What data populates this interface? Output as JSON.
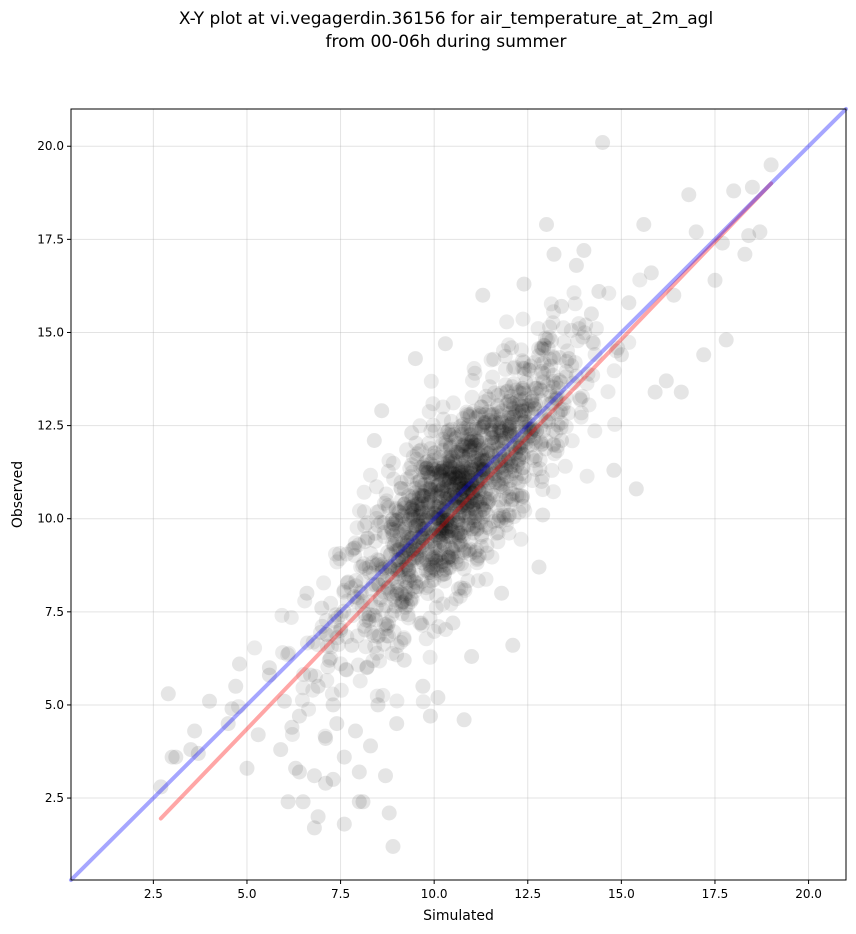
{
  "title_line1": "X-Y plot at vi.vegagerdin.36156 for air_temperature_at_2m_agl",
  "title_line2": "from 00-06h during summer",
  "chart_data": {
    "type": "scatter",
    "title": "X-Y plot at vi.vegagerdin.36156 for air_temperature_at_2m_agl from 00-06h during summer",
    "xlabel": "Simulated",
    "ylabel": "Observed",
    "xlim": [
      0.3,
      21.0
    ],
    "ylim": [
      0.3,
      21.0
    ],
    "xticks": [
      "2.5",
      "5.0",
      "7.5",
      "10.0",
      "12.5",
      "15.0",
      "17.5",
      "20.0"
    ],
    "yticks": [
      "2.5",
      "5.0",
      "7.5",
      "10.0",
      "12.5",
      "15.0",
      "17.5",
      "20.0"
    ],
    "grid": true,
    "point_color": "#000000",
    "point_alpha": 0.08,
    "points": [
      [
        2.7,
        2.8
      ],
      [
        2.9,
        5.3
      ],
      [
        3.0,
        3.6
      ],
      [
        3.1,
        3.6
      ],
      [
        3.6,
        4.3
      ],
      [
        3.7,
        3.7
      ],
      [
        3.5,
        3.8
      ],
      [
        4.0,
        5.1
      ],
      [
        4.5,
        4.5
      ],
      [
        4.6,
        4.9
      ],
      [
        4.7,
        5.5
      ],
      [
        4.8,
        6.1
      ],
      [
        5.0,
        3.3
      ],
      [
        5.3,
        4.2
      ],
      [
        5.6,
        5.8
      ],
      [
        5.6,
        6.0
      ],
      [
        5.9,
        3.8
      ],
      [
        6.0,
        5.1
      ],
      [
        6.1,
        2.4
      ],
      [
        6.2,
        4.4
      ],
      [
        6.3,
        3.3
      ],
      [
        6.4,
        3.2
      ],
      [
        6.5,
        2.4
      ],
      [
        6.4,
        4.7
      ],
      [
        6.6,
        8.0
      ],
      [
        6.7,
        5.8
      ],
      [
        6.8,
        3.1
      ],
      [
        6.8,
        1.7
      ],
      [
        6.9,
        2.0
      ],
      [
        6.9,
        5.5
      ],
      [
        7.0,
        7.6
      ],
      [
        7.1,
        4.1
      ],
      [
        7.1,
        2.9
      ],
      [
        7.2,
        6.2
      ],
      [
        7.3,
        5.0
      ],
      [
        7.3,
        3.0
      ],
      [
        7.4,
        4.5
      ],
      [
        7.5,
        7.0
      ],
      [
        7.6,
        1.8
      ],
      [
        7.6,
        3.6
      ],
      [
        7.7,
        8.3
      ],
      [
        7.8,
        6.6
      ],
      [
        7.9,
        4.3
      ],
      [
        8.0,
        2.4
      ],
      [
        8.0,
        3.2
      ],
      [
        8.1,
        2.4
      ],
      [
        8.2,
        6.0
      ],
      [
        8.3,
        3.9
      ],
      [
        8.4,
        12.1
      ],
      [
        8.5,
        5.0
      ],
      [
        8.6,
        12.9
      ],
      [
        8.7,
        3.1
      ],
      [
        8.8,
        2.1
      ],
      [
        8.9,
        1.2
      ],
      [
        9.0,
        4.5
      ],
      [
        9.2,
        6.2
      ],
      [
        9.4,
        12.3
      ],
      [
        9.5,
        14.3
      ],
      [
        9.7,
        5.5
      ],
      [
        9.9,
        4.7
      ],
      [
        10.1,
        5.2
      ],
      [
        10.3,
        14.7
      ],
      [
        10.5,
        7.2
      ],
      [
        10.8,
        4.6
      ],
      [
        11.0,
        6.3
      ],
      [
        11.2,
        9.0
      ],
      [
        11.3,
        16.0
      ],
      [
        11.8,
        8.0
      ],
      [
        12.1,
        6.6
      ],
      [
        12.4,
        16.3
      ],
      [
        12.8,
        8.7
      ],
      [
        12.9,
        10.1
      ],
      [
        13.0,
        17.9
      ],
      [
        13.2,
        17.1
      ],
      [
        13.4,
        12.1
      ],
      [
        13.8,
        16.8
      ],
      [
        14.0,
        17.2
      ],
      [
        14.5,
        20.1
      ],
      [
        14.8,
        11.3
      ],
      [
        15.0,
        14.4
      ],
      [
        15.4,
        10.8
      ],
      [
        15.6,
        17.9
      ],
      [
        15.9,
        13.4
      ],
      [
        16.2,
        13.7
      ],
      [
        16.6,
        13.4
      ],
      [
        16.8,
        18.7
      ],
      [
        17.0,
        17.7
      ],
      [
        17.2,
        14.4
      ],
      [
        17.5,
        16.4
      ],
      [
        17.8,
        14.8
      ],
      [
        18.0,
        18.8
      ],
      [
        18.3,
        17.1
      ],
      [
        18.5,
        18.9
      ],
      [
        18.7,
        17.7
      ],
      [
        19.0,
        19.5
      ],
      [
        14.2,
        15.5
      ],
      [
        13.6,
        14.3
      ],
      [
        12.7,
        13.5
      ],
      [
        15.2,
        15.8
      ],
      [
        16.4,
        16.0
      ],
      [
        17.7,
        17.4
      ],
      [
        18.4,
        17.6
      ],
      [
        15.8,
        16.6
      ],
      [
        14.4,
        16.1
      ],
      [
        13.4,
        15.7
      ]
    ],
    "cluster": {
      "center": [
        10.6,
        10.6
      ],
      "spread_x": 1.55,
      "corr_spread": 1.15,
      "count": 1500
    },
    "lines": [
      {
        "name": "",
        "color": "#ff0000",
        "alpha": 0.35,
        "x": [
          2.7,
          19.0
        ],
        "y": [
          1.95,
          19.0
        ]
      },
      {
        "name": "",
        "color": "#0000ff",
        "alpha": 0.35,
        "x": [
          0.3,
          21.0
        ],
        "y": [
          0.3,
          21.0
        ]
      }
    ]
  }
}
